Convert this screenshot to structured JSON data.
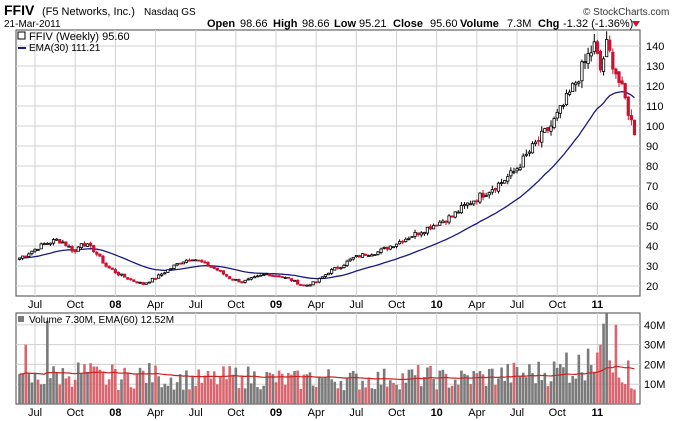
{
  "header": {
    "symbol": "FFIV",
    "company": "(F5 Networks, Inc.)",
    "exchange": "Nasdaq GS",
    "date": "21-Mar-2011",
    "brand": "© StockCharts.com",
    "open_label": "Open",
    "open_value": "98.66",
    "high_label": "High",
    "high_value": "98.66",
    "low_label": "Low",
    "low_value": "95.21",
    "close_label": "Close",
    "close_value": "95.60",
    "volume_label": "Volume",
    "volume_value": "7.3M",
    "chg_label": "Chg",
    "chg_value": "-1.32 (-1.36%)"
  },
  "colors": {
    "up": "#000000",
    "down": "#cc1133",
    "ema": "#1a1a80",
    "volume_up": "#7a7a7a",
    "volume_down": "#d9666e",
    "volume_ema": "#cc2222",
    "grid": "#d0d0d0"
  },
  "chart_data": [
    {
      "type": "candlestick",
      "legend": [
        "FFIV (Weekly) 95.60",
        "EMA(30) 111.21"
      ],
      "x_tick_labels": [
        "Jul",
        "Oct",
        "08",
        "Apr",
        "Jul",
        "Oct",
        "09",
        "Apr",
        "Jul",
        "Oct",
        "10",
        "Apr",
        "Jul",
        "Oct",
        "11"
      ],
      "y_tick_labels": [
        "20",
        "30",
        "40",
        "50",
        "60",
        "70",
        "80",
        "90",
        "100",
        "110",
        "120",
        "130",
        "140"
      ],
      "ylim": [
        15,
        148
      ],
      "grid": true,
      "weeks": 200,
      "price_close_anchors": [
        [
          0,
          34
        ],
        [
          8,
          41
        ],
        [
          12,
          43
        ],
        [
          14,
          42
        ],
        [
          18,
          37
        ],
        [
          20,
          42
        ],
        [
          24,
          38
        ],
        [
          28,
          30
        ],
        [
          32,
          26
        ],
        [
          36,
          23
        ],
        [
          40,
          21
        ],
        [
          44,
          24
        ],
        [
          48,
          28
        ],
        [
          52,
          32
        ],
        [
          56,
          34
        ],
        [
          60,
          31
        ],
        [
          64,
          28
        ],
        [
          68,
          24
        ],
        [
          72,
          22
        ],
        [
          76,
          24
        ],
        [
          80,
          26
        ],
        [
          84,
          25
        ],
        [
          88,
          23
        ],
        [
          92,
          20
        ],
        [
          96,
          22
        ],
        [
          100,
          27
        ],
        [
          104,
          30
        ],
        [
          108,
          34
        ],
        [
          112,
          36
        ],
        [
          116,
          37
        ],
        [
          120,
          40
        ],
        [
          124,
          43
        ],
        [
          128,
          46
        ],
        [
          132,
          49
        ],
        [
          136,
          52
        ],
        [
          140,
          55
        ],
        [
          144,
          60
        ],
        [
          148,
          64
        ],
        [
          152,
          68
        ],
        [
          156,
          72
        ],
        [
          160,
          77
        ],
        [
          164,
          85
        ],
        [
          168,
          93
        ],
        [
          172,
          100
        ],
        [
          176,
          110
        ],
        [
          180,
          122
        ],
        [
          184,
          135
        ],
        [
          186,
          140
        ],
        [
          188,
          128
        ],
        [
          190,
          140
        ],
        [
          192,
          132
        ],
        [
          194,
          122
        ],
        [
          196,
          113
        ],
        [
          198,
          102
        ],
        [
          199,
          95.6
        ]
      ],
      "ema_label": "EMA(30)",
      "ema_last": 111.21
    },
    {
      "type": "bar",
      "legend": [
        "Volume 7.30M, EMA(60) 12.52M"
      ],
      "y_tick_labels": [
        "10M",
        "20M",
        "30M",
        "40M"
      ],
      "ylim": [
        0,
        46
      ],
      "grid": true,
      "volume_anchors": [
        [
          0,
          11
        ],
        [
          10,
          14
        ],
        [
          20,
          16
        ],
        [
          30,
          12
        ],
        [
          40,
          15
        ],
        [
          50,
          13
        ],
        [
          60,
          12
        ],
        [
          70,
          14
        ],
        [
          80,
          13
        ],
        [
          90,
          12
        ],
        [
          100,
          13
        ],
        [
          110,
          12
        ],
        [
          120,
          13
        ],
        [
          130,
          14
        ],
        [
          140,
          12
        ],
        [
          150,
          14
        ],
        [
          160,
          15
        ],
        [
          170,
          16
        ],
        [
          180,
          18
        ],
        [
          186,
          24
        ],
        [
          190,
          30
        ],
        [
          196,
          14
        ],
        [
          199,
          7.3
        ]
      ],
      "volume_spikes": [
        [
          2,
          30
        ],
        [
          9,
          42
        ],
        [
          16,
          14
        ],
        [
          30,
          20
        ],
        [
          45,
          14
        ],
        [
          72,
          14
        ],
        [
          94,
          16
        ],
        [
          120,
          12
        ],
        [
          150,
          15
        ],
        [
          177,
          26
        ],
        [
          184,
          28
        ],
        [
          188,
          30
        ],
        [
          190,
          46
        ],
        [
          193,
          40
        ],
        [
          197,
          22
        ]
      ],
      "volume_ema_last": 12.52
    }
  ]
}
